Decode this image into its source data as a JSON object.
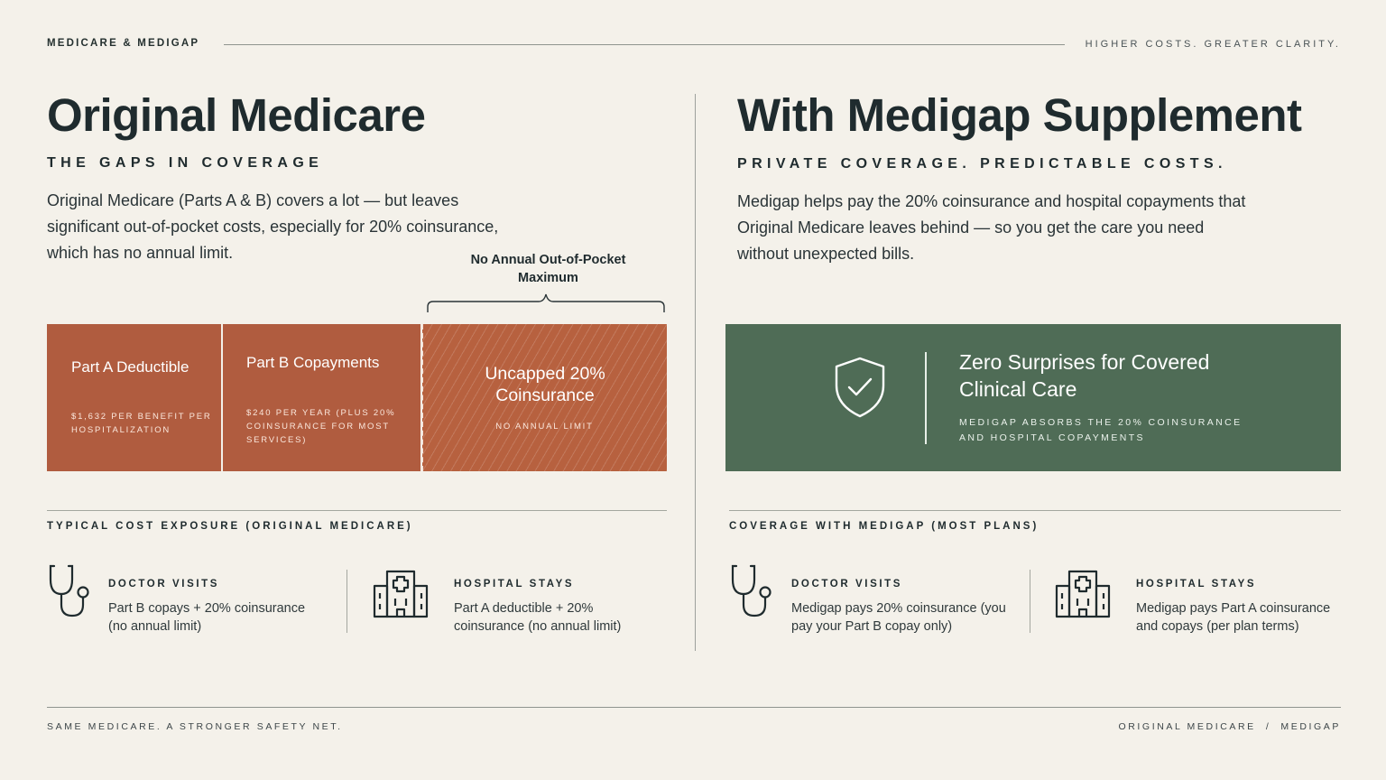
{
  "header": {
    "kicker": "MEDICARE & MEDIGAP",
    "tagline": "HIGHER COSTS. GREATER CLARITY."
  },
  "left": {
    "title": "Original Medicare",
    "subtitle": "THE GAPS IN COVERAGE",
    "lead": "Original Medicare (Parts A & B) covers a lot — but leaves significant out-of-pocket costs, especially for 20% coinsurance, which has no annual limit.",
    "bracket_label": "No Annual Out-of-Pocket Maximum",
    "segments": [
      {
        "title": "Part A Deductible",
        "detail": "$1,632 PER BENEFIT PER HOSPITALIZATION"
      },
      {
        "title": "Part B Copayments",
        "detail": "$240 PER YEAR (PLUS 20% COINSURANCE FOR MOST SERVICES)"
      },
      {
        "title": "Uncapped 20% Coinsurance",
        "detail": "NO ANNUAL LIMIT"
      }
    ],
    "section_title": "TYPICAL COST EXPOSURE (ORIGINAL MEDICARE)",
    "items": [
      {
        "icon": "stethoscope-icon",
        "title": "DOCTOR VISITS",
        "desc": "Part B copays + 20% coinsurance (no annual limit)"
      },
      {
        "icon": "hospital-icon",
        "title": "HOSPITAL STAYS",
        "desc": "Part A deductible + 20% coinsurance (no annual limit)"
      }
    ]
  },
  "right": {
    "title": "With Medigap Supplement",
    "subtitle": "PRIVATE COVERAGE. PREDICTABLE COSTS.",
    "lead": "Medigap helps pay the 20% coinsurance and hospital copayments that Original Medicare leaves behind — so you get the care you need without unexpected bills.",
    "box_title": "Zero Surprises for Covered Clinical Care",
    "box_detail": "MEDIGAP ABSORBS THE 20% COINSURANCE AND HOSPITAL COPAYMENTS",
    "section_title": "COVERAGE WITH MEDIGAP (MOST PLANS)",
    "items": [
      {
        "icon": "stethoscope-icon",
        "title": "DOCTOR VISITS",
        "desc": "Medigap pays 20% coinsurance (you pay your Part B copay only)"
      },
      {
        "icon": "hospital-icon",
        "title": "HOSPITAL STAYS",
        "desc": "Medigap pays Part A coinsurance and copays (per plan terms)"
      }
    ]
  },
  "footer": {
    "left": "SAME MEDICARE. A STRONGER SAFETY NET.",
    "right": "ORIGINAL MEDICARE  /  MEDIGAP"
  },
  "colors": {
    "background": "#f4f1ea",
    "cost_orange": "#b05c3f",
    "coverage_green": "#4f6c56",
    "ink": "#1f2b2e"
  }
}
